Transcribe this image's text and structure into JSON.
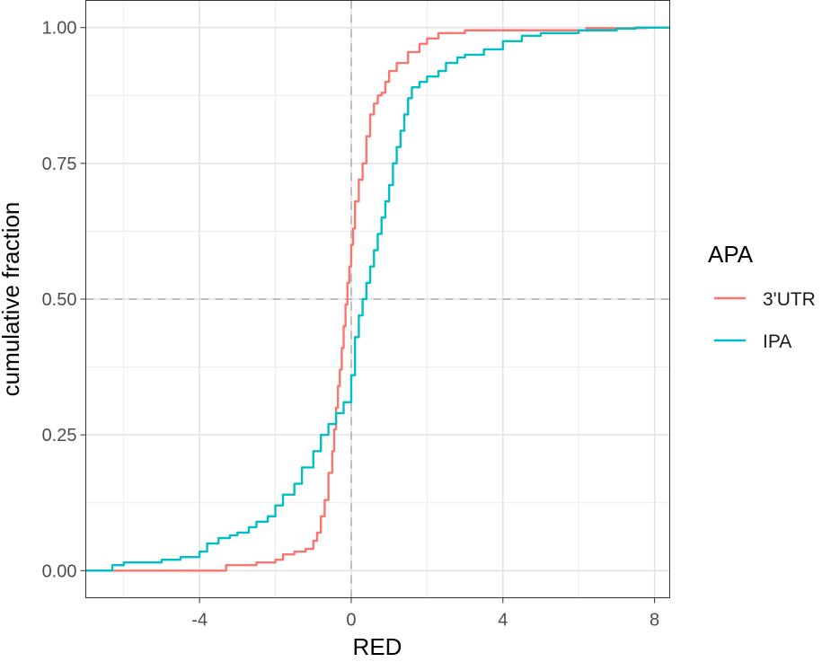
{
  "chart_data": {
    "type": "line",
    "xlabel": "RED",
    "ylabel": "cumulative fraction",
    "xlim": [
      -7,
      8.4
    ],
    "ylim": [
      -0.05,
      1.05
    ],
    "xticks": [
      -4,
      0,
      4,
      8
    ],
    "xtick_labels": [
      "-4",
      "0",
      "4",
      "8"
    ],
    "yticks": [
      0,
      0.25,
      0.5,
      0.75,
      1
    ],
    "ytick_labels": [
      "0.00",
      "0.25",
      "0.50",
      "0.75",
      "1.00"
    ],
    "grid": true,
    "reference_lines": {
      "x": 0,
      "y": 0.5,
      "style": "dashed"
    },
    "legend": {
      "title": "APA",
      "placement": "right",
      "entries": [
        "3'UTR",
        "IPA"
      ]
    },
    "series": [
      {
        "name": "3'UTR",
        "color": "#F8766D",
        "x": [
          -7,
          -3.5,
          -3.3,
          -3.0,
          -2.5,
          -2.0,
          -1.8,
          -1.5,
          -1.2,
          -1.0,
          -0.9,
          -0.8,
          -0.7,
          -0.6,
          -0.5,
          -0.45,
          -0.4,
          -0.35,
          -0.3,
          -0.25,
          -0.2,
          -0.15,
          -0.1,
          -0.05,
          0.0,
          0.05,
          0.1,
          0.2,
          0.3,
          0.4,
          0.5,
          0.6,
          0.7,
          0.8,
          0.9,
          1.0,
          1.2,
          1.5,
          1.8,
          2.0,
          2.3,
          3.0,
          4.0,
          5.0,
          6.0,
          6.2,
          7.0,
          7.8,
          8.4
        ],
        "y": [
          0.0,
          0.0,
          0.01,
          0.01,
          0.015,
          0.02,
          0.03,
          0.035,
          0.04,
          0.055,
          0.07,
          0.1,
          0.13,
          0.18,
          0.22,
          0.26,
          0.3,
          0.34,
          0.37,
          0.41,
          0.45,
          0.49,
          0.53,
          0.56,
          0.6,
          0.63,
          0.68,
          0.72,
          0.75,
          0.8,
          0.84,
          0.86,
          0.875,
          0.88,
          0.9,
          0.92,
          0.935,
          0.955,
          0.97,
          0.98,
          0.99,
          0.995,
          0.995,
          0.995,
          0.995,
          0.999,
          0.999,
          1.0,
          1.0
        ]
      },
      {
        "name": "IPA",
        "color": "#00BFC4",
        "x": [
          -7,
          -6.5,
          -6.3,
          -6.0,
          -5.0,
          -4.5,
          -4.0,
          -3.8,
          -3.5,
          -3.2,
          -3.0,
          -2.7,
          -2.5,
          -2.2,
          -2.0,
          -1.8,
          -1.5,
          -1.3,
          -1.0,
          -0.8,
          -0.6,
          -0.4,
          -0.2,
          0.0,
          0.1,
          0.2,
          0.3,
          0.4,
          0.5,
          0.6,
          0.7,
          0.8,
          0.9,
          1.0,
          1.1,
          1.2,
          1.3,
          1.4,
          1.5,
          1.6,
          1.8,
          2.0,
          2.3,
          2.5,
          2.8,
          3.0,
          3.5,
          4.0,
          4.5,
          5.0,
          6.0,
          7.0,
          7.5,
          8.4
        ],
        "y": [
          0.0,
          0.0,
          0.01,
          0.015,
          0.02,
          0.025,
          0.035,
          0.05,
          0.06,
          0.065,
          0.07,
          0.08,
          0.09,
          0.1,
          0.12,
          0.14,
          0.16,
          0.19,
          0.22,
          0.25,
          0.27,
          0.29,
          0.31,
          0.36,
          0.43,
          0.47,
          0.5,
          0.53,
          0.56,
          0.59,
          0.62,
          0.65,
          0.68,
          0.71,
          0.75,
          0.78,
          0.81,
          0.84,
          0.87,
          0.89,
          0.9,
          0.91,
          0.92,
          0.935,
          0.945,
          0.95,
          0.96,
          0.975,
          0.985,
          0.99,
          0.995,
          0.998,
          1.0,
          1.0
        ]
      }
    ]
  }
}
